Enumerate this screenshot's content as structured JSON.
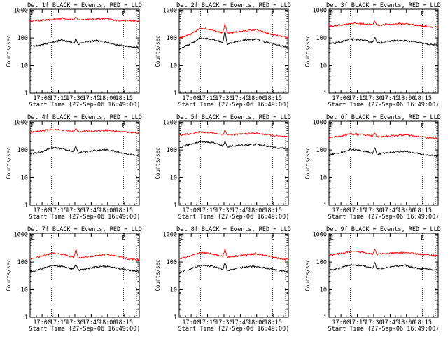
{
  "colors": {
    "events": "#000000",
    "lld": "#ff0000",
    "axes": "#000000"
  },
  "shared": {
    "xlabel": "Start Time (27-Sep-06 16:49:00)",
    "ylabel": "Counts/sec",
    "x_tick_labels": [
      "17:00",
      "17:15",
      "17:30",
      "17:45",
      "18:00",
      "18:15"
    ],
    "x_tick_minutes": [
      11,
      26,
      41,
      56,
      71,
      86
    ],
    "y_tick_labels": [
      "1",
      "10",
      "100",
      "1000"
    ],
    "y_tick_values": [
      1,
      10,
      100,
      1000
    ],
    "flag_label": "E",
    "dotted_lines_minutes": [
      19.5,
      85.5
    ],
    "flag_minutes": [
      1,
      84
    ]
  },
  "chart_data": [
    {
      "type": "line",
      "title": "Det 1f BLACK = Events, RED = LLD",
      "xlim": [
        0,
        100
      ],
      "ylim": [
        1,
        1100
      ],
      "y_scale": "log",
      "x": [
        0,
        10,
        20,
        30,
        40,
        42,
        44,
        50,
        60,
        70,
        80,
        90,
        100
      ],
      "series": [
        {
          "values": [
            420,
            430,
            460,
            520,
            450,
            560,
            450,
            470,
            480,
            500,
            430,
            420,
            400
          ]
        },
        {
          "values": [
            50,
            55,
            70,
            85,
            65,
            95,
            60,
            70,
            80,
            70,
            55,
            50,
            45
          ]
        }
      ]
    },
    {
      "type": "line",
      "title": "Det 2f BLACK = Events, RED = LLD",
      "xlim": [
        0,
        100
      ],
      "ylim": [
        1,
        1100
      ],
      "y_scale": "log",
      "x": [
        0,
        10,
        20,
        30,
        40,
        42,
        44,
        50,
        60,
        70,
        80,
        90,
        100
      ],
      "series": [
        {
          "values": [
            100,
            130,
            230,
            200,
            150,
            330,
            150,
            160,
            180,
            200,
            150,
            120,
            100
          ]
        },
        {
          "values": [
            40,
            60,
            100,
            90,
            70,
            180,
            60,
            70,
            85,
            90,
            70,
            55,
            45
          ]
        }
      ]
    },
    {
      "type": "line",
      "title": "Det 3f BLACK = Events, RED = LLD",
      "xlim": [
        0,
        100
      ],
      "ylim": [
        1,
        1100
      ],
      "y_scale": "log",
      "x": [
        0,
        10,
        20,
        30,
        40,
        42,
        44,
        50,
        60,
        70,
        80,
        90,
        100
      ],
      "series": [
        {
          "values": [
            260,
            290,
            340,
            330,
            300,
            420,
            290,
            300,
            320,
            330,
            290,
            260,
            240
          ]
        },
        {
          "values": [
            60,
            70,
            90,
            85,
            70,
            110,
            65,
            70,
            80,
            80,
            70,
            60,
            55
          ]
        }
      ]
    },
    {
      "type": "line",
      "title": "Det 4f BLACK = Events, RED = LLD",
      "xlim": [
        0,
        100
      ],
      "ylim": [
        1,
        1100
      ],
      "y_scale": "log",
      "x": [
        0,
        10,
        20,
        30,
        40,
        42,
        44,
        50,
        60,
        70,
        80,
        90,
        100
      ],
      "series": [
        {
          "values": [
            440,
            480,
            560,
            520,
            470,
            590,
            460,
            470,
            480,
            520,
            470,
            440,
            420
          ]
        },
        {
          "values": [
            70,
            85,
            120,
            110,
            85,
            140,
            80,
            85,
            95,
            100,
            85,
            70,
            60
          ]
        }
      ]
    },
    {
      "type": "line",
      "title": "Det 5f BLACK = Events, RED = LLD",
      "xlim": [
        0,
        100
      ],
      "ylim": [
        1,
        1100
      ],
      "y_scale": "log",
      "x": [
        0,
        10,
        20,
        30,
        40,
        42,
        44,
        50,
        60,
        70,
        80,
        90,
        100
      ],
      "series": [
        {
          "values": [
            340,
            380,
            450,
            420,
            360,
            520,
            350,
            360,
            380,
            400,
            360,
            320,
            290
          ]
        },
        {
          "values": [
            120,
            160,
            200,
            190,
            140,
            210,
            130,
            140,
            150,
            160,
            140,
            120,
            110
          ]
        }
      ]
    },
    {
      "type": "line",
      "title": "Det 6f BLACK = Events, RED = LLD",
      "xlim": [
        0,
        100
      ],
      "ylim": [
        1,
        1100
      ],
      "y_scale": "log",
      "x": [
        0,
        10,
        20,
        30,
        40,
        42,
        44,
        50,
        60,
        70,
        80,
        90,
        100
      ],
      "series": [
        {
          "values": [
            280,
            320,
            380,
            360,
            320,
            430,
            300,
            310,
            330,
            350,
            310,
            280,
            260
          ]
        },
        {
          "values": [
            65,
            80,
            105,
            95,
            75,
            120,
            70,
            75,
            85,
            90,
            75,
            65,
            60
          ]
        }
      ]
    },
    {
      "type": "line",
      "title": "Det 7f BLACK = Events, RED = LLD",
      "xlim": [
        0,
        100
      ],
      "ylim": [
        1,
        1100
      ],
      "y_scale": "log",
      "x": [
        0,
        10,
        20,
        30,
        40,
        42,
        44,
        50,
        60,
        70,
        80,
        90,
        100
      ],
      "series": [
        {
          "values": [
            130,
            160,
            210,
            190,
            150,
            290,
            140,
            150,
            170,
            190,
            160,
            130,
            120
          ]
        },
        {
          "values": [
            45,
            55,
            75,
            70,
            55,
            85,
            50,
            55,
            65,
            70,
            60,
            50,
            45
          ]
        }
      ]
    },
    {
      "type": "line",
      "title": "Det 8f BLACK = Events, RED = LLD",
      "xlim": [
        0,
        100
      ],
      "ylim": [
        1,
        1100
      ],
      "y_scale": "log",
      "x": [
        0,
        10,
        20,
        30,
        40,
        42,
        44,
        50,
        60,
        70,
        80,
        90,
        100
      ],
      "series": [
        {
          "values": [
            130,
            160,
            220,
            200,
            160,
            310,
            150,
            160,
            180,
            200,
            170,
            140,
            120
          ]
        },
        {
          "values": [
            40,
            55,
            75,
            70,
            55,
            95,
            50,
            55,
            65,
            70,
            60,
            50,
            45
          ]
        }
      ]
    },
    {
      "type": "line",
      "title": "Det 9f BLACK = Events, RED = LLD",
      "xlim": [
        0,
        100
      ],
      "ylim": [
        1,
        1100
      ],
      "y_scale": "log",
      "x": [
        0,
        10,
        20,
        30,
        40,
        42,
        44,
        50,
        60,
        70,
        80,
        90,
        100
      ],
      "series": [
        {
          "values": [
            180,
            200,
            240,
            230,
            200,
            290,
            190,
            200,
            210,
            220,
            200,
            180,
            170
          ]
        },
        {
          "values": [
            50,
            60,
            80,
            75,
            60,
            95,
            55,
            60,
            70,
            75,
            60,
            55,
            50
          ]
        }
      ]
    }
  ]
}
